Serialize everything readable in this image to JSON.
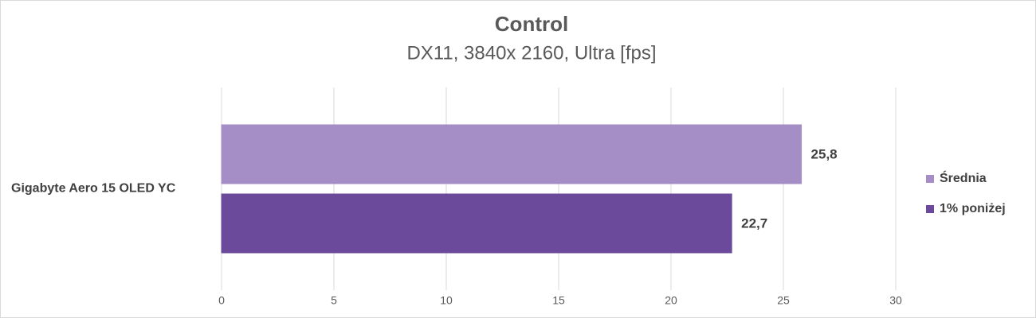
{
  "chart_data": {
    "type": "bar",
    "orientation": "horizontal",
    "title": "Control",
    "subtitle": "DX11, 3840x 2160, Ultra [fps]",
    "categories": [
      "Gigabyte Aero 15 OLED YC"
    ],
    "series": [
      {
        "name": "Średnia",
        "color": "#a48ec5",
        "values": [
          25.8
        ],
        "value_labels": [
          "25,8"
        ]
      },
      {
        "name": "1% poniżej",
        "color": "#6b4a9c",
        "values": [
          22.7
        ],
        "value_labels": [
          "22,7"
        ]
      }
    ],
    "xlim": [
      0,
      30
    ],
    "xticks": [
      0,
      5,
      10,
      15,
      20,
      25,
      30
    ],
    "grid": true,
    "legend": "right"
  }
}
